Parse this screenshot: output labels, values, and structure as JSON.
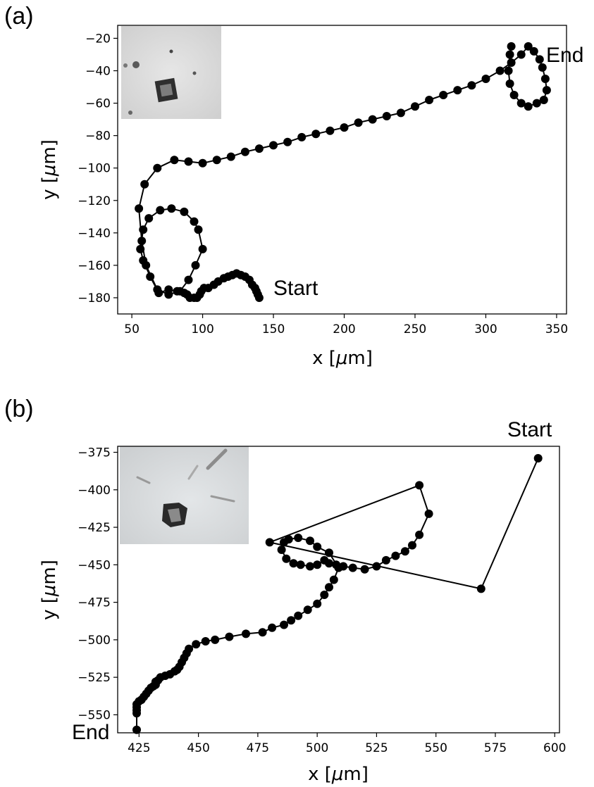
{
  "chart_data": [
    {
      "type": "scatter",
      "panel_label": "(a)",
      "xlabel_prefix": "x [",
      "xlabel_mu": "μ",
      "xlabel_suffix": "m]",
      "ylabel_prefix": "y [",
      "ylabel_mu": "μ",
      "ylabel_suffix": "m]",
      "xlim": [
        40,
        357
      ],
      "ylim": [
        -190,
        -12
      ],
      "xticks": [
        50,
        100,
        150,
        200,
        250,
        300,
        350
      ],
      "yticks": [
        -20,
        -40,
        -60,
        -80,
        -100,
        -120,
        -140,
        -160,
        -180
      ],
      "annotations": [
        {
          "text": "Start",
          "x": 150,
          "y": -175
        },
        {
          "text": "End",
          "x": 337,
          "y": -36
        }
      ],
      "inset": "crystal-photo",
      "grid": false,
      "series": [
        {
          "points": [
            [
              140,
              -180
            ],
            [
              139,
              -178
            ],
            [
              138,
              -176
            ],
            [
              137,
              -174
            ],
            [
              135,
              -172
            ],
            [
              133,
              -169
            ],
            [
              130,
              -167
            ],
            [
              127,
              -166
            ],
            [
              124,
              -165
            ],
            [
              121,
              -166
            ],
            [
              118,
              -167
            ],
            [
              115,
              -168
            ],
            [
              111,
              -170
            ],
            [
              108,
              -172
            ],
            [
              104,
              -174
            ],
            [
              101,
              -174
            ],
            [
              99,
              -176
            ],
            [
              98,
              -178
            ],
            [
              96,
              -180
            ],
            [
              94,
              -180
            ],
            [
              91,
              -180
            ],
            [
              89,
              -178
            ],
            [
              87,
              -177
            ],
            [
              82,
              -176
            ],
            [
              76,
              -175
            ],
            [
              69,
              -177
            ],
            [
              63,
              -167
            ],
            [
              58,
              -157
            ],
            [
              56,
              -150
            ],
            [
              58,
              -138
            ],
            [
              62,
              -131
            ],
            [
              70,
              -126
            ],
            [
              78,
              -125
            ],
            [
              87,
              -127
            ],
            [
              94,
              -133
            ],
            [
              97,
              -138
            ],
            [
              100,
              -150
            ],
            [
              95,
              -160
            ],
            [
              90,
              -169
            ],
            [
              84,
              -176
            ],
            [
              76,
              -178
            ],
            [
              68,
              -175
            ],
            [
              60,
              -160
            ],
            [
              57,
              -145
            ],
            [
              55,
              -125
            ],
            [
              59,
              -110
            ],
            [
              68,
              -100
            ],
            [
              80,
              -95
            ],
            [
              90,
              -96
            ],
            [
              100,
              -97
            ],
            [
              110,
              -95
            ],
            [
              120,
              -93
            ],
            [
              130,
              -90
            ],
            [
              140,
              -88
            ],
            [
              150,
              -86
            ],
            [
              160,
              -84
            ],
            [
              170,
              -81
            ],
            [
              180,
              -79
            ],
            [
              190,
              -77
            ],
            [
              200,
              -75
            ],
            [
              210,
              -72
            ],
            [
              220,
              -70
            ],
            [
              230,
              -68
            ],
            [
              240,
              -66
            ],
            [
              250,
              -62
            ],
            [
              260,
              -58
            ],
            [
              270,
              -55
            ],
            [
              280,
              -52
            ],
            [
              290,
              -49
            ],
            [
              300,
              -45
            ],
            [
              310,
              -40
            ],
            [
              318,
              -35
            ],
            [
              325,
              -30
            ],
            [
              330,
              -25
            ],
            [
              334,
              -28
            ],
            [
              338,
              -33
            ],
            [
              340,
              -38
            ],
            [
              342,
              -45
            ],
            [
              343,
              -52
            ],
            [
              341,
              -58
            ],
            [
              336,
              -60
            ],
            [
              330,
              -62
            ],
            [
              325,
              -60
            ],
            [
              320,
              -55
            ],
            [
              317,
              -48
            ],
            [
              316,
              -40
            ],
            [
              317,
              -30
            ],
            [
              318,
              -25
            ]
          ]
        }
      ]
    },
    {
      "type": "scatter",
      "panel_label": "(b)",
      "xlabel_prefix": "x [",
      "xlabel_mu": "μ",
      "xlabel_suffix": "m]",
      "ylabel_prefix": "y [",
      "ylabel_mu": "μ",
      "ylabel_suffix": "m]",
      "xlim": [
        416,
        602
      ],
      "ylim": [
        -562,
        -371
      ],
      "xticks": [
        425,
        450,
        475,
        500,
        525,
        550,
        575,
        600
      ],
      "yticks": [
        -375,
        -400,
        -425,
        -450,
        -475,
        -500,
        -525,
        -550
      ],
      "annotations": [
        {
          "text": "Start",
          "x": 593,
          "y": -365
        },
        {
          "text": "End",
          "x": 415,
          "y": -560
        }
      ],
      "inset": "crystal-photo",
      "grid": false,
      "series": [
        {
          "points": [
            [
              593,
              -379
            ],
            [
              569,
              -466
            ],
            [
              480,
              -435
            ],
            [
              543,
              -397
            ],
            [
              547,
              -416
            ],
            [
              543,
              -430
            ],
            [
              540,
              -437
            ],
            [
              537,
              -441
            ],
            [
              533,
              -444
            ],
            [
              529,
              -447
            ],
            [
              525,
              -451
            ],
            [
              520,
              -453
            ],
            [
              515,
              -452
            ],
            [
              511,
              -451
            ],
            [
              508,
              -450
            ],
            [
              505,
              -449
            ],
            [
              503,
              -447
            ],
            [
              500,
              -450
            ],
            [
              497,
              -451
            ],
            [
              493,
              -450
            ],
            [
              490,
              -449
            ],
            [
              487,
              -446
            ],
            [
              485,
              -440
            ],
            [
              486,
              -435
            ],
            [
              488,
              -433
            ],
            [
              492,
              -432
            ],
            [
              497,
              -434
            ],
            [
              500,
              -438
            ],
            [
              505,
              -442
            ],
            [
              509,
              -452
            ],
            [
              507,
              -460
            ],
            [
              505,
              -465
            ],
            [
              503,
              -470
            ],
            [
              500,
              -476
            ],
            [
              496,
              -480
            ],
            [
              492,
              -484
            ],
            [
              489,
              -487
            ],
            [
              486,
              -490
            ],
            [
              481,
              -492
            ],
            [
              477,
              -495
            ],
            [
              470,
              -496
            ],
            [
              463,
              -498
            ],
            [
              457,
              -500
            ],
            [
              453,
              -501
            ],
            [
              449,
              -503
            ],
            [
              446,
              -506
            ],
            [
              445,
              -509
            ],
            [
              444,
              -512
            ],
            [
              443,
              -515
            ],
            [
              442,
              -518
            ],
            [
              441,
              -520
            ],
            [
              440,
              -521
            ],
            [
              438,
              -523
            ],
            [
              436,
              -524
            ],
            [
              434,
              -525
            ],
            [
              433,
              -527
            ],
            [
              432,
              -528
            ],
            [
              432,
              -530
            ],
            [
              431,
              -531
            ],
            [
              430,
              -532
            ],
            [
              429,
              -534
            ],
            [
              428,
              -536
            ],
            [
              427,
              -538
            ],
            [
              426,
              -540
            ],
            [
              425,
              -541
            ],
            [
              424,
              -543
            ],
            [
              424,
              -545
            ],
            [
              424,
              -547
            ],
            [
              424,
              -549
            ],
            [
              424,
              -560
            ]
          ]
        }
      ]
    }
  ]
}
